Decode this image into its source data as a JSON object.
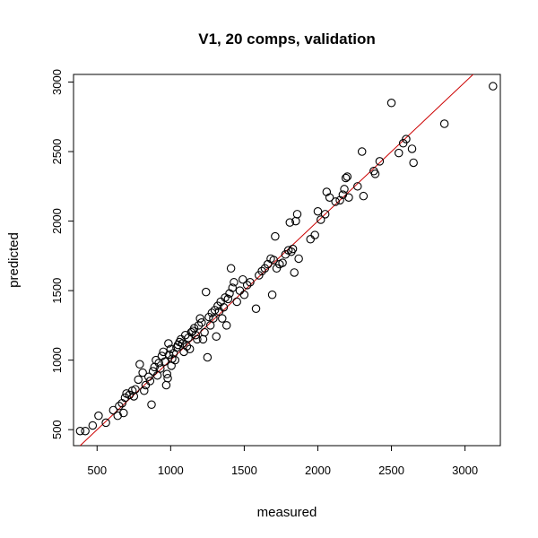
{
  "chart_data": {
    "type": "scatter",
    "title": "V1, 20 comps, validation",
    "xlabel": "measured",
    "ylabel": "predicted",
    "xlim": [
      340,
      3240
    ],
    "ylim": [
      385,
      3055
    ],
    "xticks": [
      500,
      1000,
      1500,
      2000,
      2500,
      3000
    ],
    "yticks": [
      500,
      1000,
      1500,
      2000,
      2500,
      3000
    ],
    "grid": false,
    "point_color": "#000000",
    "line_color": "#cc0000",
    "reference_line": {
      "x": [
        340,
        3240
      ],
      "y": [
        340,
        3240
      ]
    },
    "points": [
      [
        385,
        490
      ],
      [
        420,
        490
      ],
      [
        470,
        530
      ],
      [
        510,
        600
      ],
      [
        560,
        550
      ],
      [
        610,
        640
      ],
      [
        640,
        600
      ],
      [
        650,
        670
      ],
      [
        670,
        690
      ],
      [
        680,
        620
      ],
      [
        690,
        730
      ],
      [
        700,
        760
      ],
      [
        720,
        750
      ],
      [
        740,
        780
      ],
      [
        750,
        740
      ],
      [
        760,
        790
      ],
      [
        780,
        860
      ],
      [
        790,
        970
      ],
      [
        810,
        910
      ],
      [
        820,
        780
      ],
      [
        830,
        820
      ],
      [
        850,
        880
      ],
      [
        860,
        850
      ],
      [
        870,
        680
      ],
      [
        880,
        920
      ],
      [
        890,
        950
      ],
      [
        900,
        1000
      ],
      [
        910,
        890
      ],
      [
        920,
        980
      ],
      [
        930,
        940
      ],
      [
        940,
        1030
      ],
      [
        950,
        1060
      ],
      [
        960,
        990
      ],
      [
        970,
        820
      ],
      [
        975,
        900
      ],
      [
        980,
        870
      ],
      [
        985,
        1120
      ],
      [
        990,
        1040
      ],
      [
        1000,
        1080
      ],
      [
        1005,
        960
      ],
      [
        1010,
        1010
      ],
      [
        1020,
        1050
      ],
      [
        1030,
        1000
      ],
      [
        1040,
        1090
      ],
      [
        1050,
        1110
      ],
      [
        1060,
        1130
      ],
      [
        1070,
        1150
      ],
      [
        1080,
        1120
      ],
      [
        1090,
        1060
      ],
      [
        1100,
        1180
      ],
      [
        1110,
        1100
      ],
      [
        1120,
        1160
      ],
      [
        1130,
        1080
      ],
      [
        1140,
        1200
      ],
      [
        1150,
        1210
      ],
      [
        1160,
        1230
      ],
      [
        1170,
        1180
      ],
      [
        1180,
        1150
      ],
      [
        1190,
        1250
      ],
      [
        1200,
        1300
      ],
      [
        1210,
        1270
      ],
      [
        1220,
        1150
      ],
      [
        1230,
        1200
      ],
      [
        1240,
        1490
      ],
      [
        1250,
        1020
      ],
      [
        1260,
        1310
      ],
      [
        1270,
        1250
      ],
      [
        1280,
        1340
      ],
      [
        1290,
        1300
      ],
      [
        1300,
        1360
      ],
      [
        1310,
        1170
      ],
      [
        1320,
        1390
      ],
      [
        1330,
        1350
      ],
      [
        1340,
        1420
      ],
      [
        1350,
        1300
      ],
      [
        1360,
        1380
      ],
      [
        1370,
        1450
      ],
      [
        1380,
        1250
      ],
      [
        1390,
        1440
      ],
      [
        1400,
        1480
      ],
      [
        1410,
        1660
      ],
      [
        1420,
        1520
      ],
      [
        1430,
        1560
      ],
      [
        1450,
        1420
      ],
      [
        1470,
        1500
      ],
      [
        1490,
        1580
      ],
      [
        1500,
        1470
      ],
      [
        1520,
        1540
      ],
      [
        1540,
        1560
      ],
      [
        1580,
        1370
      ],
      [
        1600,
        1610
      ],
      [
        1620,
        1640
      ],
      [
        1640,
        1660
      ],
      [
        1660,
        1690
      ],
      [
        1680,
        1730
      ],
      [
        1690,
        1470
      ],
      [
        1700,
        1720
      ],
      [
        1710,
        1890
      ],
      [
        1720,
        1660
      ],
      [
        1740,
        1690
      ],
      [
        1760,
        1700
      ],
      [
        1780,
        1760
      ],
      [
        1800,
        1790
      ],
      [
        1810,
        1990
      ],
      [
        1820,
        1780
      ],
      [
        1830,
        1800
      ],
      [
        1840,
        1630
      ],
      [
        1850,
        2000
      ],
      [
        1860,
        2050
      ],
      [
        1870,
        1730
      ],
      [
        1950,
        1870
      ],
      [
        1980,
        1900
      ],
      [
        2000,
        2070
      ],
      [
        2020,
        2010
      ],
      [
        2050,
        2050
      ],
      [
        2060,
        2210
      ],
      [
        2080,
        2170
      ],
      [
        2120,
        2140
      ],
      [
        2150,
        2150
      ],
      [
        2170,
        2190
      ],
      [
        2180,
        2230
      ],
      [
        2190,
        2310
      ],
      [
        2200,
        2320
      ],
      [
        2210,
        2170
      ],
      [
        2270,
        2250
      ],
      [
        2300,
        2500
      ],
      [
        2310,
        2180
      ],
      [
        2380,
        2360
      ],
      [
        2390,
        2340
      ],
      [
        2420,
        2430
      ],
      [
        2500,
        2850
      ],
      [
        2550,
        2490
      ],
      [
        2580,
        2560
      ],
      [
        2600,
        2590
      ],
      [
        2640,
        2520
      ],
      [
        2650,
        2420
      ],
      [
        2860,
        2700
      ],
      [
        3190,
        2970
      ]
    ]
  }
}
